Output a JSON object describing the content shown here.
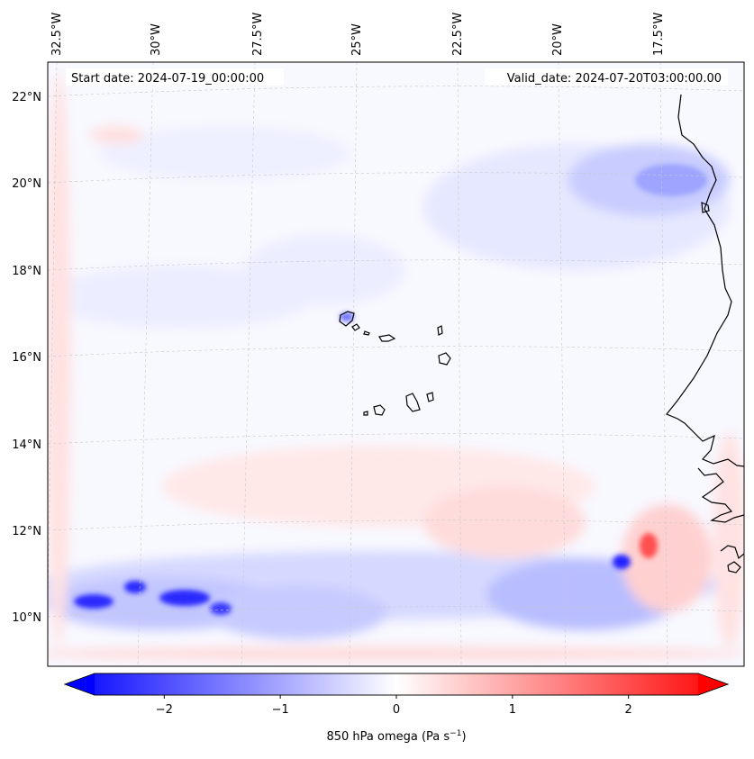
{
  "header": {
    "start_date": "Start date: 2024-07-19_00:00:00",
    "valid_date": "Valid_date: 2024-07-20T03:00:00.00"
  },
  "map": {
    "longitude_labels": [
      "32.5°W",
      "30°W",
      "27.5°W",
      "25°W",
      "22.5°W",
      "20°W",
      "17.5°W"
    ],
    "latitude_labels": [
      "22°N",
      "20°N",
      "18°N",
      "16°N",
      "14°N",
      "12°N",
      "10°N"
    ],
    "field": "850 hPa omega",
    "colors": {
      "negative": "#0000ff",
      "zero": "#ffffff",
      "positive": "#ff0000",
      "coastline": "#000000",
      "gridline": "#c8c8c8"
    }
  },
  "colorbar": {
    "ticks": [
      "−2",
      "−1",
      "0",
      "1",
      "2"
    ],
    "tick_values": [
      -2,
      -1,
      0,
      1,
      2
    ],
    "range": [
      -2.6,
      2.6
    ],
    "label_main": "850 hPa omega (Pa s",
    "label_sup": "−1",
    "label_close": ")"
  }
}
